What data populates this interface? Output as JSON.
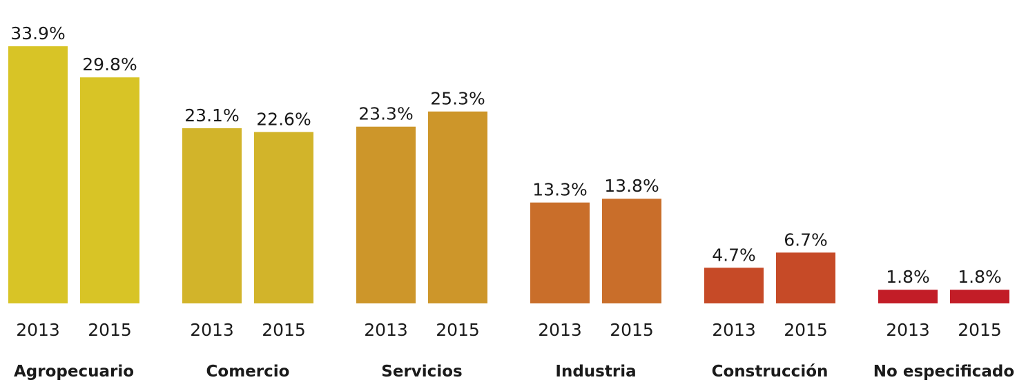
{
  "chart_data": {
    "type": "bar",
    "categories": [
      "Agropecuario",
      "Comercio",
      "Servicios",
      "Industria",
      "Construcción",
      "No especificado"
    ],
    "series": [
      {
        "name": "2013",
        "values": [
          33.9,
          23.1,
          23.3,
          13.3,
          4.7,
          1.8
        ],
        "value_labels": [
          "33.9%",
          "23.1%",
          "23.3%",
          "13.3%",
          "4.7%",
          "1.8%"
        ]
      },
      {
        "name": "2015",
        "values": [
          29.8,
          22.6,
          25.3,
          13.8,
          6.7,
          1.8
        ],
        "value_labels": [
          "29.8%",
          "22.6%",
          "25.3%",
          "13.8%",
          "6.7%",
          "1.8%"
        ]
      }
    ],
    "category_colors": [
      "#d8c426",
      "#d2b42a",
      "#cd962a",
      "#c96e2a",
      "#c64a27",
      "#c21d27"
    ],
    "title": "",
    "xlabel": "",
    "ylabel": "",
    "ylim": [
      0,
      34
    ],
    "grid": false,
    "legend": "none"
  }
}
